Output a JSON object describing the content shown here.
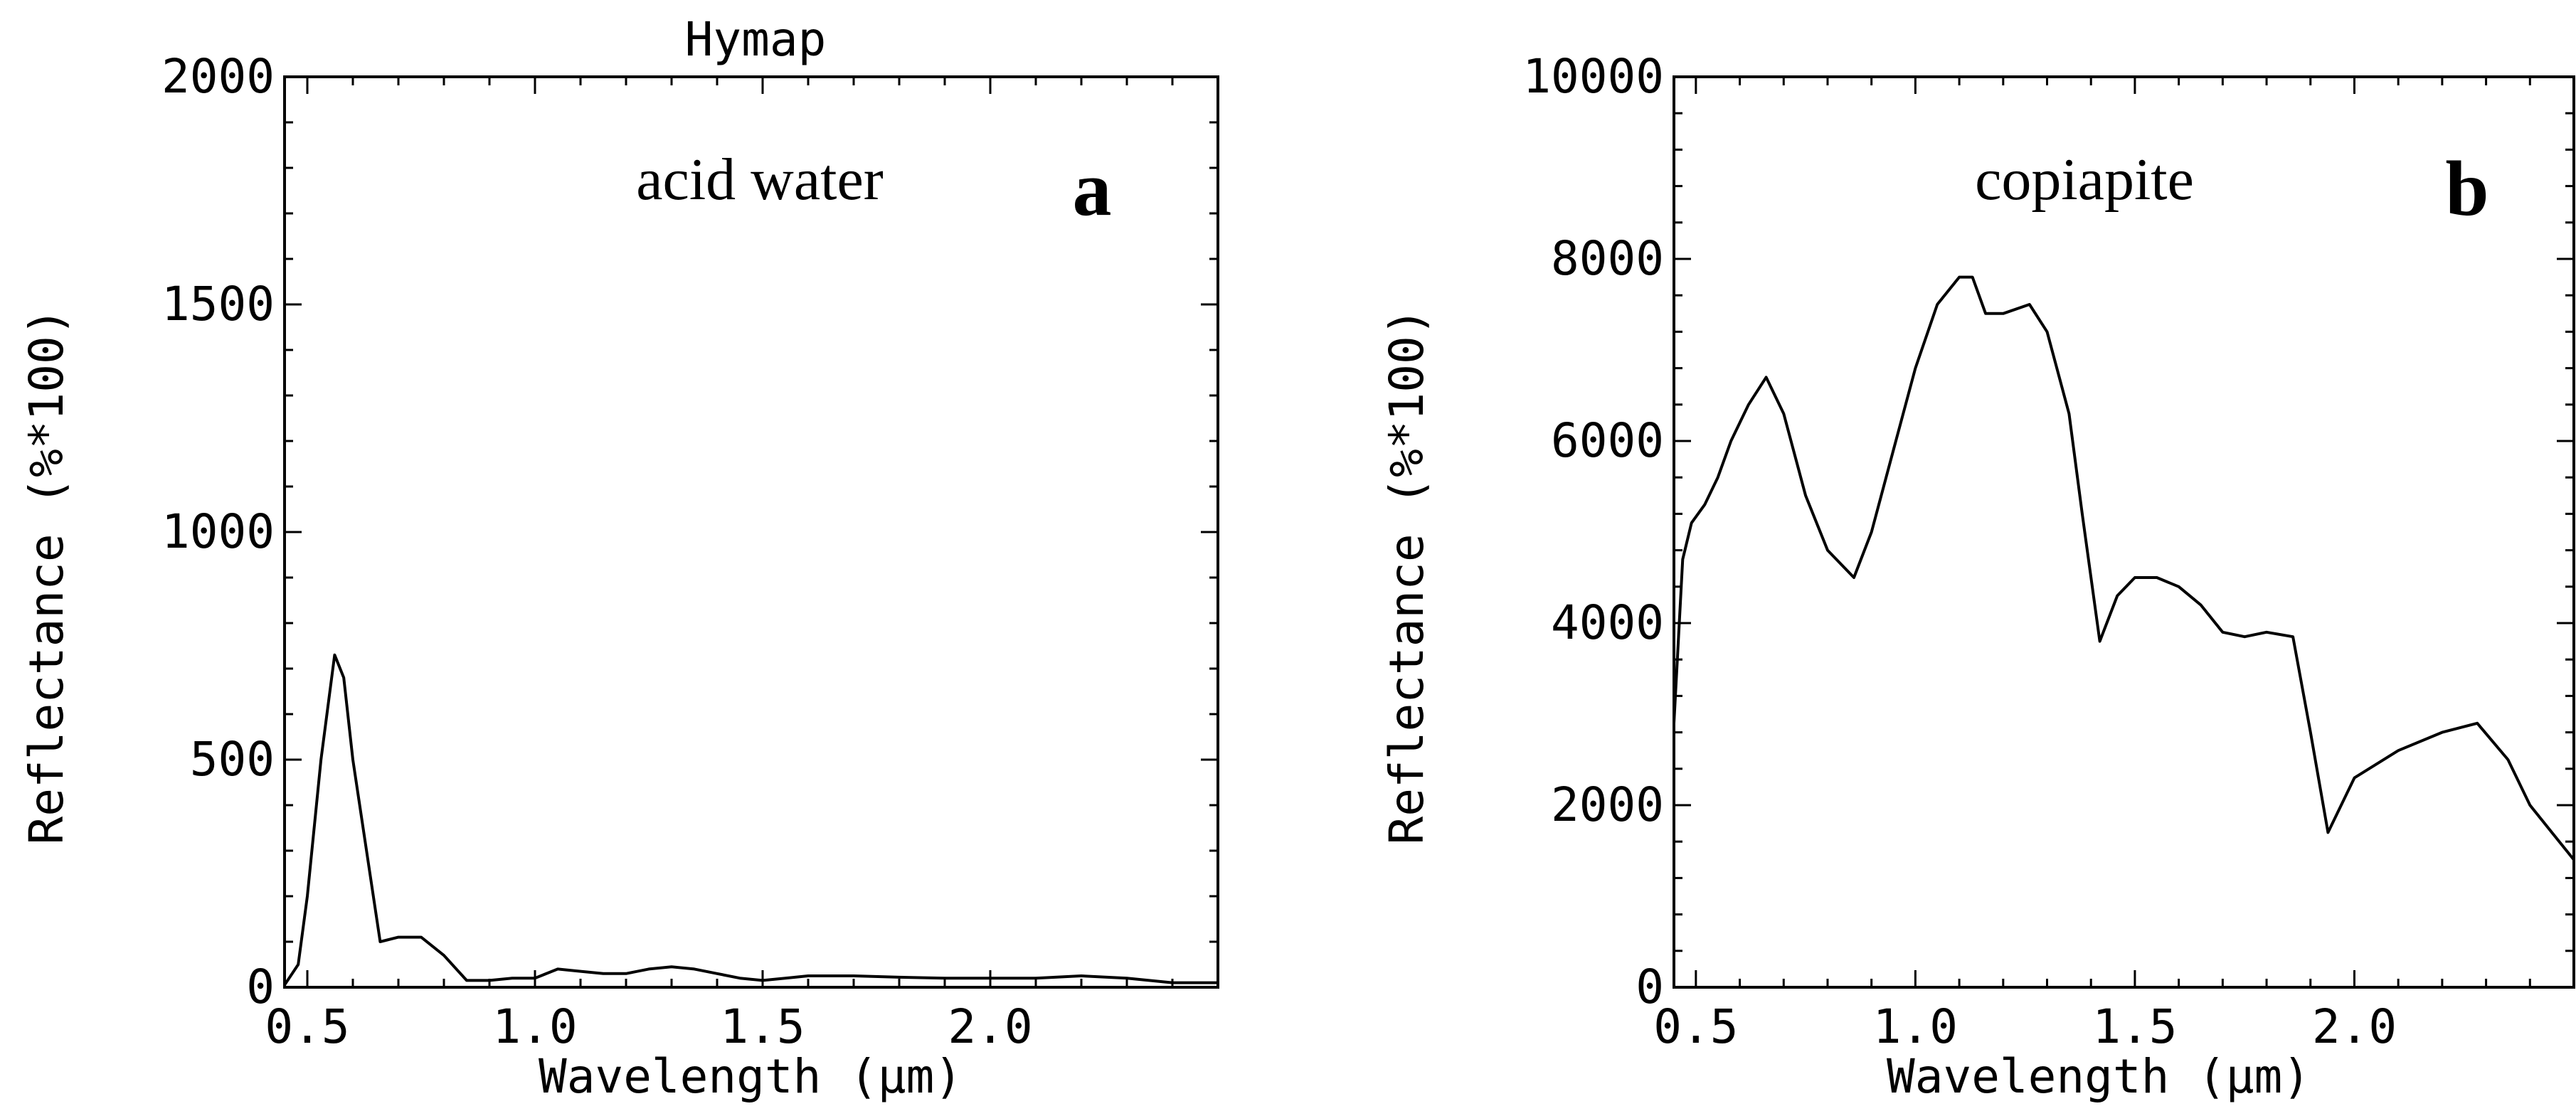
{
  "chart_data": [
    {
      "type": "line",
      "title": "Hymap",
      "annotation": "acid water",
      "panel_label": "a",
      "xlabel": "Wavelength (μm)",
      "ylabel": "Reflectance (%*100)",
      "xlim": [
        0.45,
        2.5
      ],
      "ylim": [
        0,
        2000
      ],
      "xticks": [
        0.5,
        1.0,
        1.5,
        2.0
      ],
      "xtick_labels": [
        "0.5",
        "1.0",
        "1.5",
        "2.0"
      ],
      "yticks": [
        0,
        500,
        1000,
        1500,
        2000
      ],
      "ytick_labels": [
        "0",
        "500",
        "1000",
        "1500",
        "2000"
      ],
      "series": [
        {
          "name": "acid water",
          "x": [
            0.45,
            0.48,
            0.5,
            0.53,
            0.56,
            0.58,
            0.6,
            0.63,
            0.66,
            0.7,
            0.75,
            0.8,
            0.85,
            0.9,
            0.95,
            1.0,
            1.05,
            1.1,
            1.15,
            1.2,
            1.25,
            1.3,
            1.35,
            1.4,
            1.45,
            1.5,
            1.55,
            1.6,
            1.7,
            1.8,
            1.9,
            2.0,
            2.1,
            2.2,
            2.3,
            2.4,
            2.5
          ],
          "y": [
            5,
            50,
            200,
            500,
            730,
            680,
            500,
            300,
            100,
            110,
            110,
            70,
            15,
            15,
            20,
            20,
            40,
            35,
            30,
            30,
            40,
            45,
            40,
            30,
            20,
            15,
            20,
            25,
            25,
            22,
            20,
            20,
            20,
            25,
            20,
            10,
            10
          ]
        }
      ]
    },
    {
      "type": "line",
      "title": "",
      "annotation": "copiapite",
      "panel_label": "b",
      "xlabel": "Wavelength (μm)",
      "ylabel": "Reflectance (%*100)",
      "xlim": [
        0.45,
        2.5
      ],
      "ylim": [
        0,
        10000
      ],
      "xticks": [
        0.5,
        1.0,
        1.5,
        2.0
      ],
      "xtick_labels": [
        "0.5",
        "1.0",
        "1.5",
        "2.0"
      ],
      "yticks": [
        0,
        2000,
        4000,
        6000,
        8000,
        10000
      ],
      "ytick_labels": [
        "0",
        "2000",
        "4000",
        "6000",
        "8000",
        "10000"
      ],
      "series": [
        {
          "name": "copiapite",
          "x": [
            0.45,
            0.47,
            0.49,
            0.52,
            0.55,
            0.58,
            0.62,
            0.66,
            0.7,
            0.75,
            0.8,
            0.86,
            0.9,
            0.95,
            1.0,
            1.05,
            1.1,
            1.13,
            1.16,
            1.2,
            1.26,
            1.3,
            1.35,
            1.38,
            1.42,
            1.46,
            1.5,
            1.55,
            1.6,
            1.65,
            1.7,
            1.75,
            1.8,
            1.86,
            1.9,
            1.94,
            2.0,
            2.1,
            2.2,
            2.28,
            2.35,
            2.4,
            2.45,
            2.5
          ],
          "y": [
            2900,
            4700,
            5100,
            5300,
            5600,
            6000,
            6400,
            6700,
            6300,
            5400,
            4800,
            4500,
            5000,
            5900,
            6800,
            7500,
            7800,
            7800,
            7400,
            7400,
            7500,
            7200,
            6300,
            5200,
            3800,
            4300,
            4500,
            4500,
            4400,
            4200,
            3900,
            3850,
            3900,
            3850,
            2800,
            1700,
            2300,
            2600,
            2800,
            2900,
            2500,
            2000,
            1700,
            1400
          ]
        }
      ]
    }
  ]
}
